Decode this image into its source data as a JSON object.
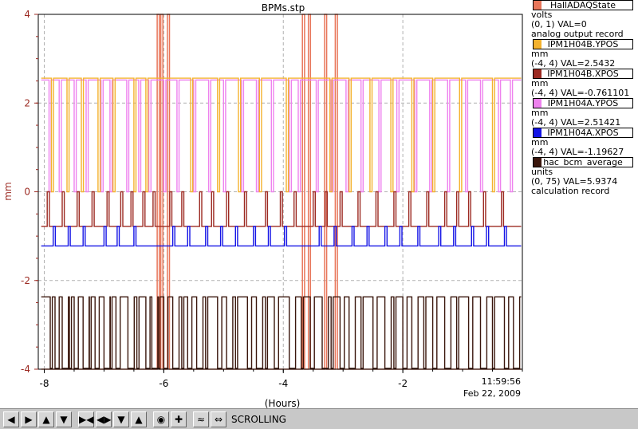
{
  "chart_data": {
    "type": "line",
    "title": "BPMs.stp",
    "xlabel": "(Hours)",
    "ylabel": "mm",
    "xlim": [
      -8.1,
      -0.0
    ],
    "ylim": [
      -4,
      4
    ],
    "x_ticks": [
      -8,
      -6,
      -4,
      -2
    ],
    "x_tick_labels": [
      "-8",
      "-6",
      "-4",
      "-2"
    ],
    "y_ticks": [
      -4,
      -2,
      0,
      2,
      4
    ],
    "y_tick_labels": [
      "-4",
      "-2",
      "0",
      "2",
      "4"
    ],
    "time_label": "11:59:56",
    "date_label": "Feb 22, 2009",
    "grid": true,
    "legend_position": "right",
    "series": [
      {
        "name": "HallADAQState",
        "units": "volts",
        "range": "(0, 1)",
        "value_text": "VAL=0",
        "record_type": "analog output record",
        "color": "#e8765a",
        "baseline": -4.0,
        "high": 4.0,
        "spikes": [
          -6.11,
          -6.05,
          -5.94,
          -3.68,
          -3.58,
          -3.31,
          -3.13
        ]
      },
      {
        "name": "IPM1H04B.YPOS",
        "units": "mm",
        "range": "(-4, 4)",
        "value_text": "VAL=2.5432",
        "color": "#f4b22e",
        "baseline": 2.56,
        "low": 0.0,
        "dips": [
          -7.88,
          -7.62,
          -7.38,
          -7.1,
          -6.85,
          -6.5,
          -6.3,
          -5.55,
          -5.1,
          -4.75,
          -4.4,
          -3.95,
          -3.22,
          -2.9,
          -2.55,
          -2.2,
          -1.85,
          -1.5,
          -1.05,
          -0.5
        ]
      },
      {
        "name": "IPM1H04B.XPOS",
        "units": "mm",
        "range": "(-4, 4)",
        "value_text": "VAL=-0.761101",
        "color": "#9c2a22",
        "baseline": -0.78,
        "high": 0.0,
        "spikes": [
          -7.95,
          -7.7,
          -7.45,
          -7.2,
          -6.95,
          -6.72,
          -6.55,
          -6.35,
          -6.18,
          -5.9,
          -5.7,
          -5.4,
          -5.2,
          -4.95,
          -4.65,
          -4.3,
          -4.05,
          -3.82,
          -3.5,
          -3.3,
          -3.05,
          -2.75,
          -2.45,
          -2.15,
          -1.9,
          -1.6,
          -1.3,
          -1.1,
          -0.9,
          -0.65,
          -0.35
        ]
      },
      {
        "name": "IPM1H04A.YPOS",
        "units": "mm",
        "range": "(-4, 4)",
        "value_text": "VAL=2.51421",
        "color": "#ee82ee",
        "baseline": 2.52,
        "low": 0.0,
        "dips": [
          -7.92,
          -7.75,
          -7.5,
          -7.3,
          -7.05,
          -6.9,
          -6.62,
          -6.42,
          -6.25,
          -6.0,
          -5.78,
          -5.5,
          -5.25,
          -5.0,
          -4.7,
          -4.45,
          -4.2,
          -3.9,
          -3.75,
          -3.45,
          -3.2,
          -2.95,
          -2.7,
          -2.4,
          -2.1,
          -1.8,
          -1.55,
          -1.25,
          -0.95,
          -0.7,
          -0.4,
          -0.2
        ]
      },
      {
        "name": "IPM1H04A.XPOS",
        "units": "mm",
        "range": "(-4, 4)",
        "value_text": "VAL=-1.19627",
        "color": "#1414e6",
        "baseline": -1.22,
        "high": -0.78,
        "spikes": [
          -7.85,
          -7.6,
          -7.35,
          -7.0,
          -6.78,
          -6.5,
          -5.85,
          -5.6,
          -5.3,
          -5.05,
          -4.8,
          -4.5,
          -4.25,
          -3.98,
          -3.4,
          -3.15,
          -2.85,
          -2.6,
          -2.3,
          -2.05,
          -1.75,
          -1.4,
          -1.15,
          -0.85,
          -0.6,
          -0.3
        ]
      },
      {
        "name": "hac_bcm_average",
        "units": "units",
        "range": "(0, 75)",
        "value_text": "VAL=5.9374",
        "record_type": "calculation record",
        "color": "#3a160c",
        "baseline": -2.37,
        "low": -3.98,
        "drops": [
          -7.9,
          -7.82,
          -7.7,
          -7.58,
          -7.5,
          -7.35,
          -7.25,
          -7.15,
          -7.0,
          -6.9,
          -6.8,
          -6.6,
          -6.45,
          -6.3,
          -6.2,
          -6.1,
          -6.0,
          -5.85,
          -5.7,
          -5.6,
          -5.45,
          -5.3,
          -5.1,
          -4.95,
          -4.8,
          -4.6,
          -4.45,
          -4.3,
          -4.15,
          -3.9,
          -3.7,
          -3.55,
          -3.35,
          -3.2,
          -3.05,
          -2.9,
          -2.7,
          -2.5,
          -2.3,
          -2.15,
          -2.0,
          -1.85,
          -1.65,
          -1.5,
          -1.3,
          -1.1,
          -0.9,
          -0.7,
          -0.5,
          -0.3,
          -0.15
        ]
      }
    ]
  },
  "toolbar": {
    "buttons": [
      "arrow-left",
      "arrow-right",
      "arrow-up",
      "arrow-down",
      "zoom-in-x",
      "zoom-out-x",
      "zoom-in-y",
      "zoom-out-y",
      "record",
      "add",
      "autoscale",
      "scroll-toggle"
    ],
    "status": "SCROLLING"
  }
}
